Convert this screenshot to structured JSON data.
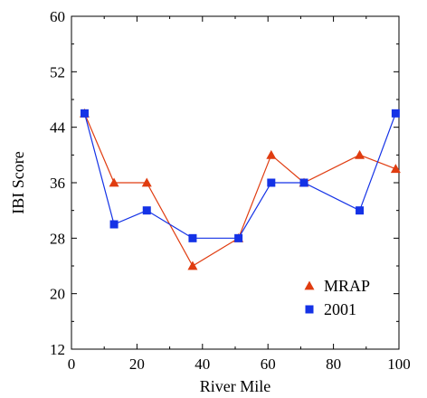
{
  "chart_data": {
    "type": "line",
    "title": "",
    "xlabel": "River Mile",
    "ylabel": "IBI Score",
    "xlim": [
      0,
      100
    ],
    "ylim": [
      12,
      60
    ],
    "xticks": [
      0,
      20,
      40,
      60,
      80,
      100
    ],
    "yticks": [
      12,
      20,
      28,
      36,
      44,
      52,
      60
    ],
    "grid": false,
    "legend_position": "bottom-right",
    "series": [
      {
        "name": "MRAP",
        "marker": "triangle",
        "color": "#e03c10",
        "x": [
          4,
          13,
          23,
          37,
          51,
          61,
          71,
          88,
          99
        ],
        "y": [
          46,
          36,
          36,
          24,
          28,
          40,
          36,
          40,
          38
        ]
      },
      {
        "name": "2001",
        "marker": "square",
        "color": "#1432e6",
        "x": [
          4,
          13,
          23,
          37,
          51,
          61,
          71,
          88,
          99
        ],
        "y": [
          46,
          30,
          32,
          28,
          28,
          36,
          36,
          32,
          46
        ]
      }
    ]
  }
}
